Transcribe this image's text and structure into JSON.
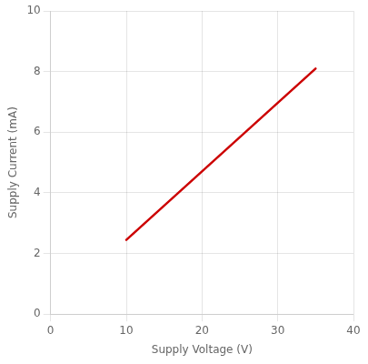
{
  "chart_data": {
    "type": "line",
    "x": [
      10,
      35
    ],
    "values": [
      2.45,
      8.1
    ],
    "color": "#cc0000",
    "xlabel": "Supply Voltage (V)",
    "ylabel": "Supply Current (mA)",
    "xlim": [
      0,
      40
    ],
    "ylim": [
      0,
      10
    ],
    "xticks": [
      0,
      10,
      20,
      30,
      40
    ],
    "yticks": [
      0,
      2,
      4,
      6,
      8,
      10
    ],
    "grid": true
  }
}
